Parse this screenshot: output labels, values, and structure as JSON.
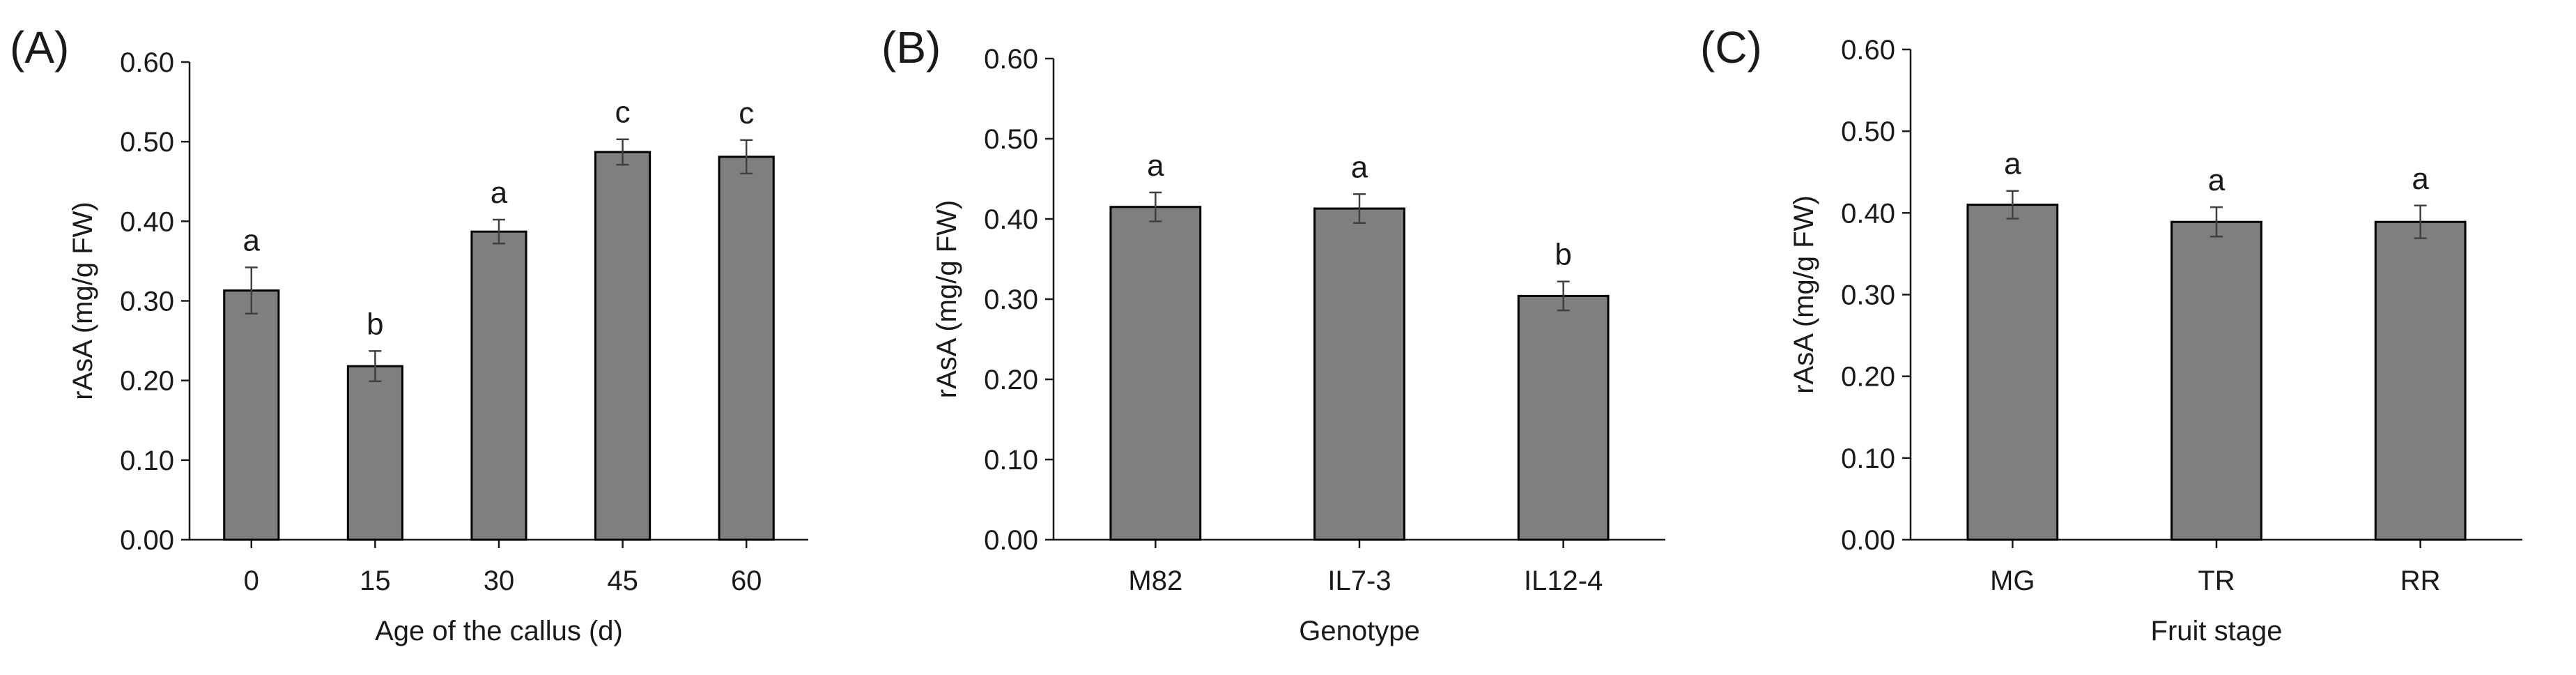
{
  "colors": {
    "bar_fill": "#7f7f7f",
    "bar_edge": "#000000",
    "text": "#1a1a1a"
  },
  "chart_data": [
    {
      "type": "bar",
      "panel": "(A)",
      "categories": [
        "0",
        "15",
        "30",
        "45",
        "60"
      ],
      "values": [
        0.313,
        0.218,
        0.387,
        0.487,
        0.481
      ],
      "errors": [
        0.029,
        0.019,
        0.015,
        0.016,
        0.021
      ],
      "letters": [
        "a",
        "b",
        "a",
        "c",
        "c"
      ],
      "xlabel": "Age of the callus (d)",
      "ylabel": "rAsA (mg/g FW)",
      "ylim": [
        0,
        0.6
      ],
      "yticks": [
        "0.00",
        "0.10",
        "0.20",
        "0.30",
        "0.40",
        "0.50",
        "0.60"
      ],
      "grid": false
    },
    {
      "type": "bar",
      "panel": "(B)",
      "categories": [
        "M82",
        "IL7-3",
        "IL12-4"
      ],
      "values": [
        0.415,
        0.413,
        0.304
      ],
      "errors": [
        0.018,
        0.018,
        0.018
      ],
      "letters": [
        "a",
        "a",
        "b"
      ],
      "xlabel": "Genotype",
      "ylabel": "rAsA (mg/g FW)",
      "ylim": [
        0,
        0.6
      ],
      "yticks": [
        "0.00",
        "0.10",
        "0.20",
        "0.30",
        "0.40",
        "0.50",
        "0.60"
      ],
      "grid": false
    },
    {
      "type": "bar",
      "panel": "(C)",
      "categories": [
        "MG",
        "TR",
        "RR"
      ],
      "values": [
        0.41,
        0.389,
        0.389
      ],
      "errors": [
        0.017,
        0.018,
        0.02
      ],
      "letters": [
        "a",
        "a",
        "a"
      ],
      "xlabel": "Fruit stage",
      "ylabel": "rAsA (mg/g FW)",
      "ylim": [
        0,
        0.6
      ],
      "yticks": [
        "0.00",
        "0.10",
        "0.20",
        "0.30",
        "0.40",
        "0.50",
        "0.60"
      ],
      "grid": false
    }
  ]
}
